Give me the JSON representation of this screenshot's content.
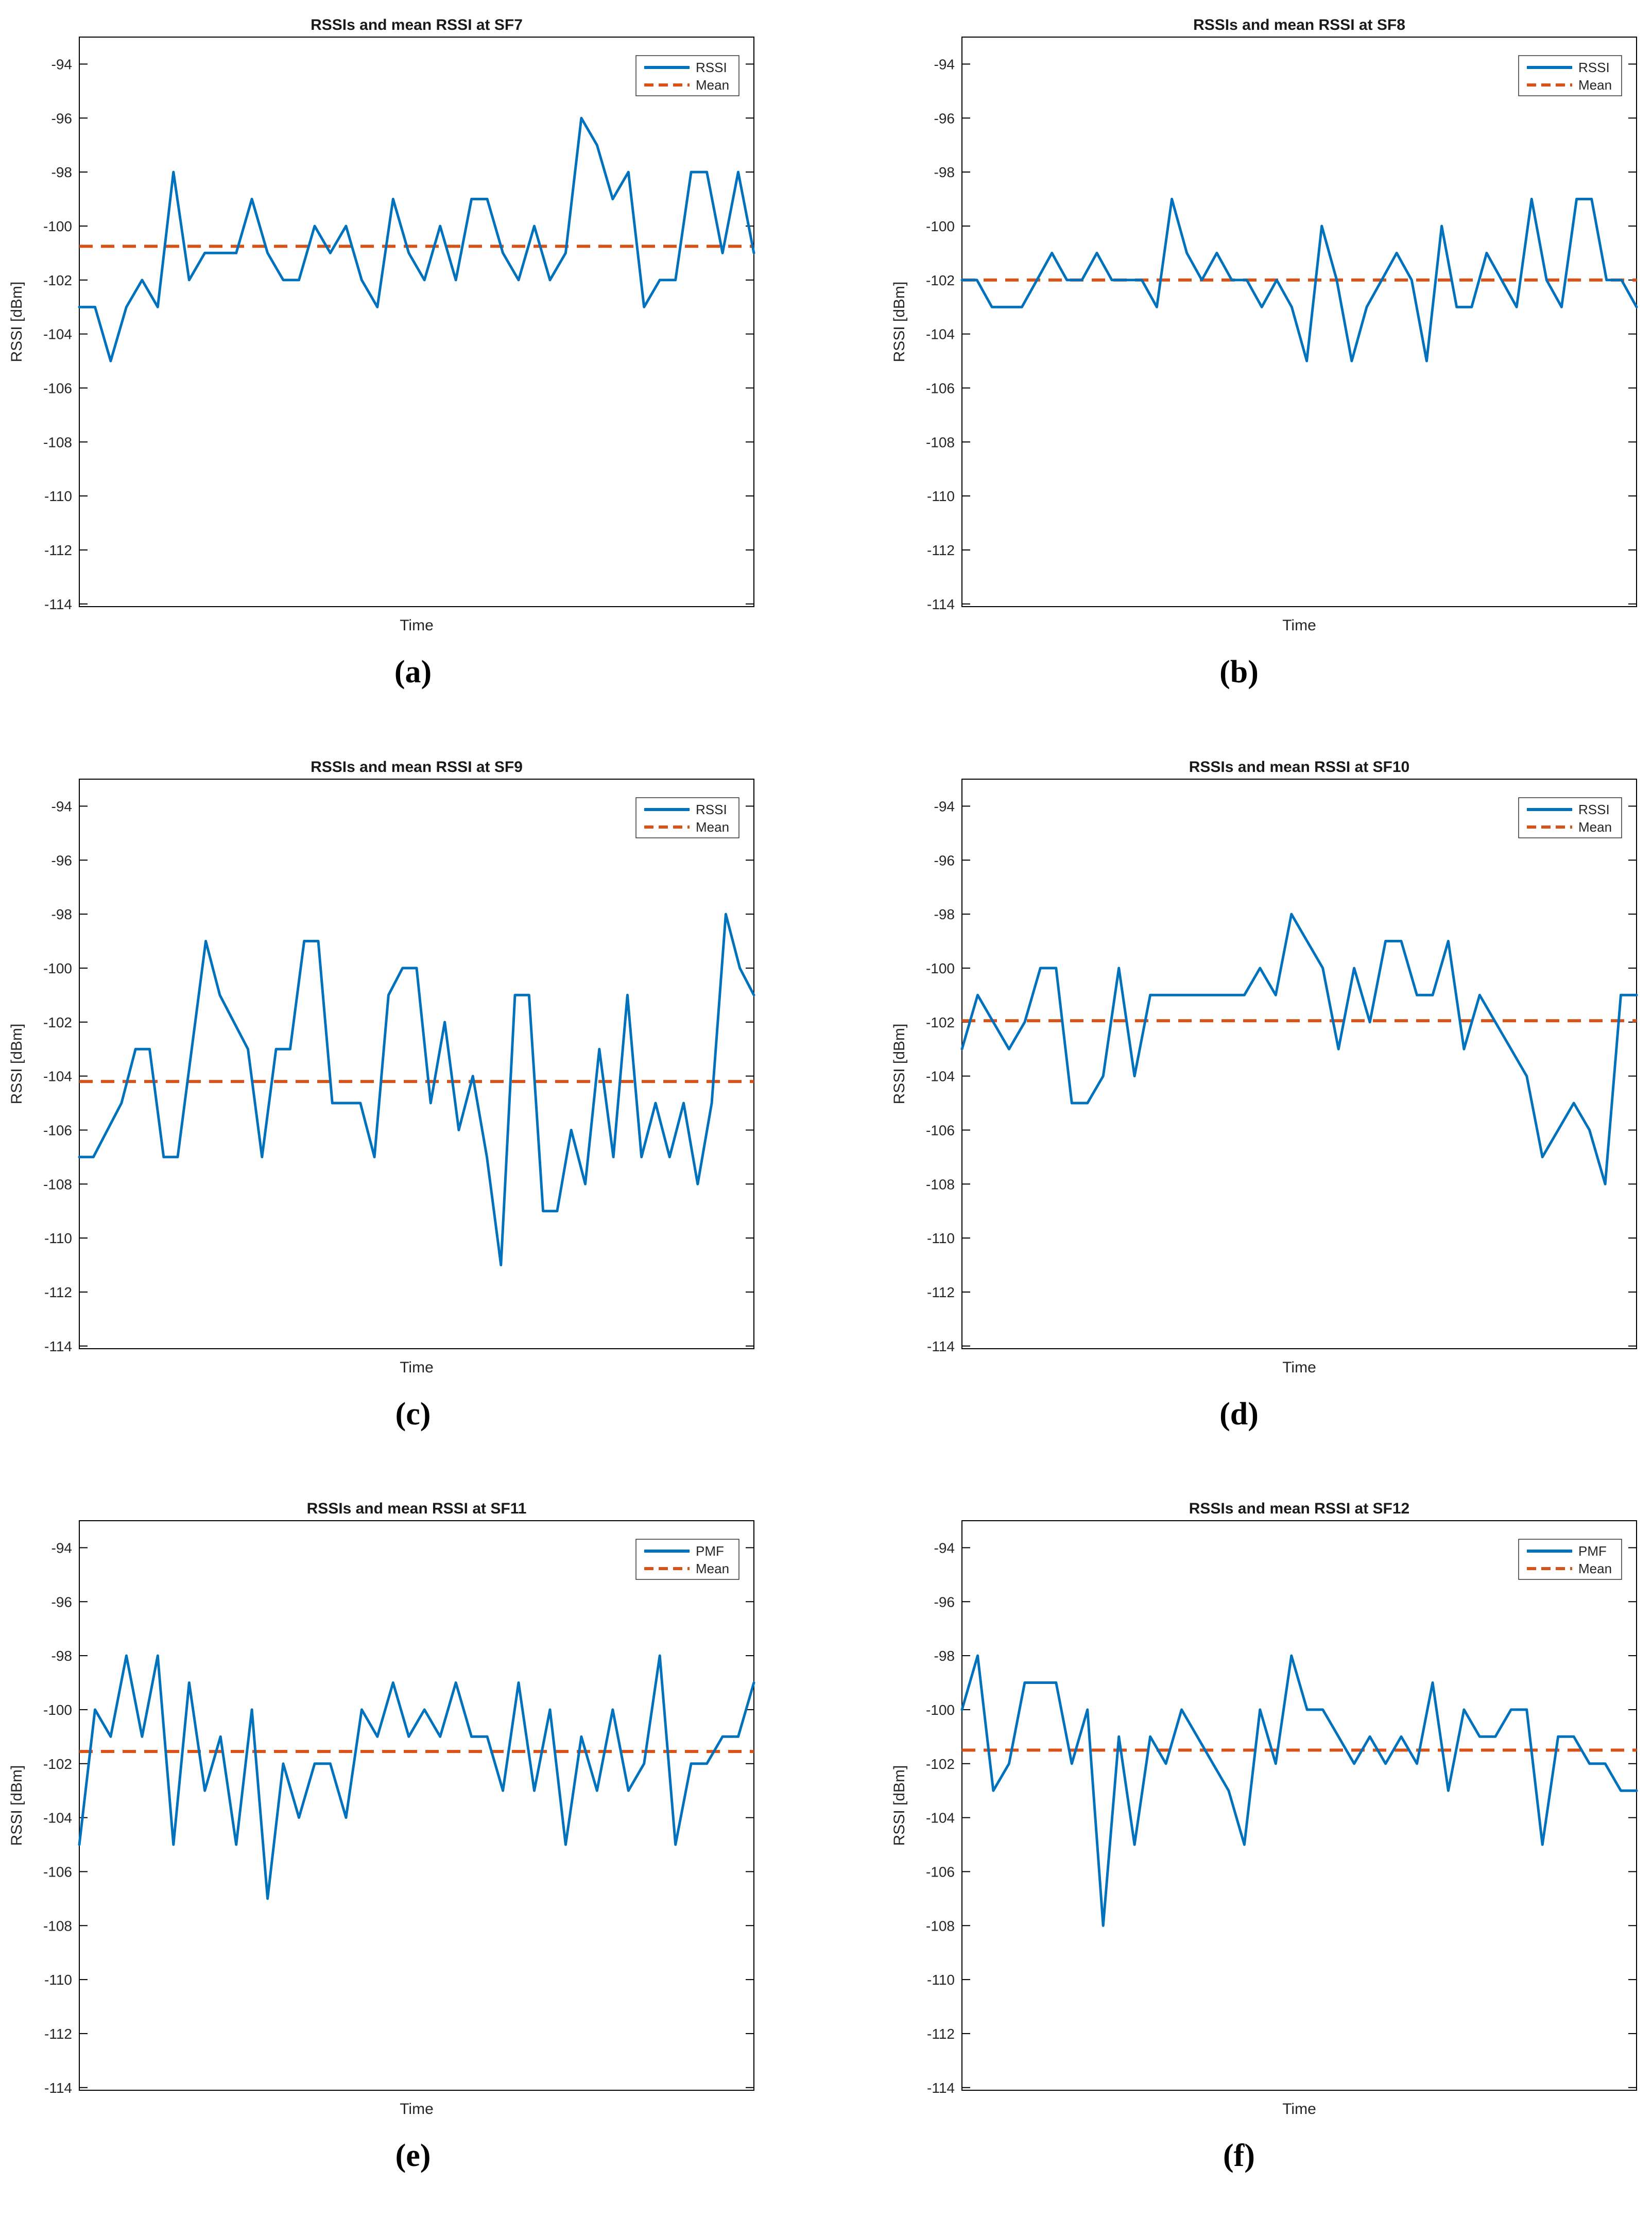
{
  "figure": {
    "colors": {
      "line": "#0072BD",
      "mean": "#D95319",
      "tick_text": "#262626",
      "title_text": "#1a1a1a",
      "box": "#000000"
    },
    "axes": {
      "ylabel": "RSSI [dBm]",
      "xlabel": "Time",
      "yticks": [
        -94,
        -96,
        -98,
        -100,
        -102,
        -104,
        -106,
        -108,
        -110,
        -112,
        -114
      ],
      "ylim_top": -93.0,
      "ylim_bottom": -114.1,
      "grid": false,
      "legend_position": "top-right"
    }
  },
  "chart_data": [
    {
      "id": "a",
      "type": "line",
      "title": "RSSIs and mean RSSI at SF7",
      "caption": "(a)",
      "series_label": "RSSI",
      "mean_label": "Mean",
      "xlabel": "Time",
      "ylabel": "RSSI [dBm]",
      "mean": -100.75,
      "values": [
        -103,
        -103,
        -105,
        -103,
        -102,
        -103,
        -98,
        -102,
        -101,
        -101,
        -101,
        -99,
        -101,
        -102,
        -102,
        -100,
        -101,
        -100,
        -102,
        -103,
        -99,
        -101,
        -102,
        -100,
        -102,
        -99,
        -99,
        -101,
        -102,
        -100,
        -102,
        -101,
        -96,
        -97,
        -99,
        -98,
        -103,
        -102,
        -102,
        -98,
        -98,
        -101,
        -98,
        -101
      ]
    },
    {
      "id": "b",
      "type": "line",
      "title": "RSSIs and mean RSSI at SF8",
      "caption": "(b)",
      "series_label": "RSSI",
      "mean_label": "Mean",
      "xlabel": "Time",
      "ylabel": "RSSI [dBm]",
      "mean": -102.0,
      "values": [
        -102,
        -102,
        -103,
        -103,
        -103,
        -102,
        -101,
        -102,
        -102,
        -101,
        -102,
        -102,
        -102,
        -103,
        -99,
        -101,
        -102,
        -101,
        -102,
        -102,
        -103,
        -102,
        -103,
        -105,
        -100,
        -102,
        -105,
        -103,
        -102,
        -101,
        -102,
        -105,
        -100,
        -103,
        -103,
        -101,
        -102,
        -103,
        -99,
        -102,
        -103,
        -99,
        -99,
        -102,
        -102,
        -103
      ]
    },
    {
      "id": "c",
      "type": "line",
      "title": "RSSIs and mean RSSI at SF9",
      "caption": "(c)",
      "series_label": "RSSI",
      "mean_label": "Mean",
      "xlabel": "Time",
      "ylabel": "RSSI [dBm]",
      "mean": -104.2,
      "values": [
        -107,
        -107,
        -106,
        -105,
        -103,
        -103,
        -107,
        -107,
        -103,
        -99,
        -101,
        -102,
        -103,
        -107,
        -103,
        -103,
        -99,
        -99,
        -105,
        -105,
        -105,
        -107,
        -101,
        -100,
        -100,
        -105,
        -102,
        -106,
        -104,
        -107,
        -111,
        -101,
        -101,
        -109,
        -109,
        -106,
        -108,
        -103,
        -107,
        -101,
        -107,
        -105,
        -107,
        -105,
        -108,
        -105,
        -98,
        -100,
        -101
      ]
    },
    {
      "id": "d",
      "type": "line",
      "title": "RSSIs and mean RSSI at SF10",
      "caption": "(d)",
      "series_label": "RSSI",
      "mean_label": "Mean",
      "xlabel": "Time",
      "ylabel": "RSSI [dBm]",
      "mean": -101.95,
      "values": [
        -103,
        -101,
        -102,
        -103,
        -102,
        -100,
        -100,
        -105,
        -105,
        -104,
        -100,
        -104,
        -101,
        -101,
        -101,
        -101,
        -101,
        -101,
        -101,
        -100,
        -101,
        -98,
        -99,
        -100,
        -103,
        -100,
        -102,
        -99,
        -99,
        -101,
        -101,
        -99,
        -103,
        -101,
        -102,
        -103,
        -104,
        -107,
        -106,
        -105,
        -106,
        -108,
        -101,
        -101
      ]
    },
    {
      "id": "e",
      "type": "line",
      "title": "RSSIs and mean RSSI at SF11",
      "caption": "(e)",
      "series_label": "PMF",
      "mean_label": "Mean",
      "xlabel": "Time",
      "ylabel": "RSSI [dBm]",
      "mean": -101.55,
      "values": [
        -105,
        -100,
        -101,
        -98,
        -101,
        -98,
        -105,
        -99,
        -103,
        -101,
        -105,
        -100,
        -107,
        -102,
        -104,
        -102,
        -102,
        -104,
        -100,
        -101,
        -99,
        -101,
        -100,
        -101,
        -99,
        -101,
        -101,
        -103,
        -99,
        -103,
        -100,
        -105,
        -101,
        -103,
        -100,
        -103,
        -102,
        -98,
        -105,
        -102,
        -102,
        -101,
        -101,
        -99
      ]
    },
    {
      "id": "f",
      "type": "line",
      "title": "RSSIs and mean RSSI at SF12",
      "caption": "(f)",
      "series_label": "PMF",
      "mean_label": "Mean",
      "xlabel": "Time",
      "ylabel": "RSSI [dBm]",
      "mean": -101.5,
      "values": [
        -100,
        -98,
        -103,
        -102,
        -99,
        -99,
        -99,
        -102,
        -100,
        -108,
        -101,
        -105,
        -101,
        -102,
        -100,
        -101,
        -102,
        -103,
        -105,
        -100,
        -102,
        -98,
        -100,
        -100,
        -101,
        -102,
        -101,
        -102,
        -101,
        -102,
        -99,
        -103,
        -100,
        -101,
        -101,
        -100,
        -100,
        -105,
        -101,
        -101,
        -102,
        -102,
        -103,
        -103
      ]
    }
  ]
}
